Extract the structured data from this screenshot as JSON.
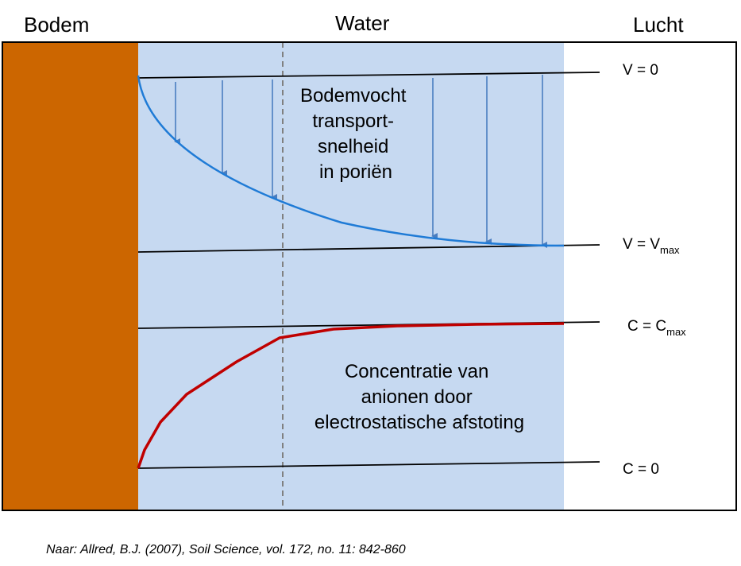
{
  "headers": {
    "soil": "Bodem",
    "water": "Water",
    "air": "Lucht"
  },
  "labels": {
    "v_zero": "V = 0",
    "v_max_main": "V = V",
    "v_max_sub": "max",
    "c_max_main": "C = C",
    "c_max_sub": "max",
    "c_zero": "C = 0"
  },
  "descriptions": {
    "velocity": [
      "Bodemvocht",
      "transport-",
      "snelheid",
      "in poriën"
    ],
    "concentration": [
      "Concentratie van",
      "anionen door",
      "electrostatische afstoting"
    ]
  },
  "citation": "Naar: Allred, B.J. (2007), Soil Science, vol. 172, no. 11: 842-860",
  "colors": {
    "soil": "#cc6600",
    "water": "#c6d9f1",
    "frame": "#000000",
    "velocity_curve": "#1f7bd6",
    "velocity_arrows": "#4a7ec0",
    "concentration_curve": "#c00000",
    "divider": "#808080"
  }
}
